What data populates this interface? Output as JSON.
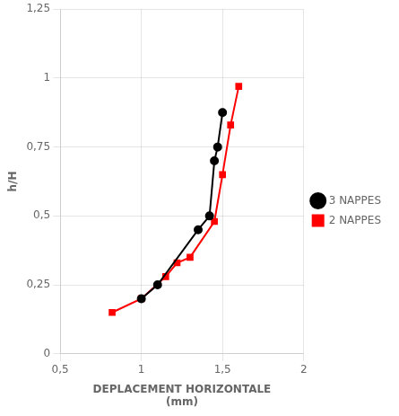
{
  "chart_data": {
    "type": "line",
    "x_label": "DEPLACEMENT HORIZONTALE\n(mm)",
    "y_label": "h/H",
    "series": [
      {
        "name": "3 NAPPES",
        "color": "#000000",
        "marker": "circle",
        "x": [
          1.0,
          1.1,
          1.35,
          1.42,
          1.45,
          1.47,
          1.5
        ],
        "values": [
          0.2,
          0.25,
          0.45,
          0.5,
          0.7,
          0.75,
          0.875
        ]
      },
      {
        "name": "2 NAPPES",
        "color": "#ff0000",
        "marker": "square",
        "x": [
          0.82,
          1.0,
          1.15,
          1.22,
          1.3,
          1.45,
          1.5,
          1.55,
          1.6
        ],
        "values": [
          0.15,
          0.2,
          0.28,
          0.33,
          0.35,
          0.48,
          0.65,
          0.83,
          0.97
        ]
      }
    ],
    "xlim": [
      0.5,
      2.0
    ],
    "xticks": [
      {
        "value": 0.5,
        "label": "0,5"
      },
      1,
      {
        "value": 1.5,
        "label": "1,5"
      },
      2
    ],
    "ylim": [
      0.0,
      1.25
    ],
    "yticks": [
      0,
      {
        "value": 0.25,
        "label": "0,25"
      },
      {
        "value": 0.5,
        "label": "0,5"
      },
      {
        "value": 0.75,
        "label": "0,75"
      },
      1,
      {
        "value": 1.25,
        "label": "1,25"
      }
    ],
    "grid": true,
    "legend": "right"
  }
}
